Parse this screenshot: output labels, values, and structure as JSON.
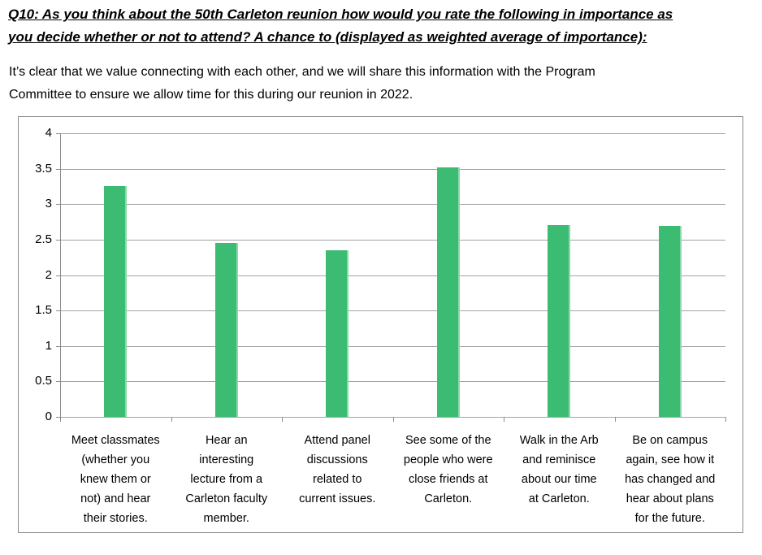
{
  "header": {
    "lines": [
      "Q10: As you think about the 50th Carleton reunion how would you rate the following in importance as",
      "you decide whether or not to attend?  A chance to (displayed as weighted average of importance):"
    ]
  },
  "intro": {
    "lines": [
      "It’s clear that we value connecting with each other, and we will share this information with the Program",
      "Committee to ensure we allow time for this during our reunion in 2022."
    ]
  },
  "chart_data": {
    "type": "bar",
    "title": "",
    "xlabel": "",
    "ylabel": "",
    "categories": [
      "Meet classmates (whether you knew them or not) and hear their stories.",
      "Hear an interesting lecture from a Carleton faculty member.",
      "Attend panel discussions related to current issues.",
      "See some of the people who were close friends at Carleton.",
      "Walk in the Arb and reminisce about our time at Carleton.",
      "Be on campus again, see how it has changed and hear about plans for the future."
    ],
    "category_lines": [
      [
        "Meet classmates",
        "(whether you",
        "knew them or",
        "not) and hear",
        "their stories."
      ],
      [
        "Hear an",
        "interesting",
        "lecture from a",
        "Carleton faculty",
        "member."
      ],
      [
        "Attend panel",
        "discussions",
        "related to",
        "current issues."
      ],
      [
        "See some of the",
        "people who were",
        "close friends at",
        "Carleton."
      ],
      [
        "Walk in the Arb",
        "and reminisce",
        "about our time",
        "at Carleton."
      ],
      [
        "Be on campus",
        "again, see how it",
        "has changed and",
        "hear about plans",
        "for the future."
      ]
    ],
    "values": [
      3.25,
      2.45,
      2.35,
      3.52,
      2.71,
      2.69
    ],
    "ylim": [
      0,
      4
    ],
    "ytick_step": 0.5,
    "grid": true,
    "legend": false,
    "colors": {
      "bar": "#3CBB72",
      "bar_edge_highlight": "#8CD8AC",
      "gridline": "#A3A3A3",
      "axis": "#8C8C8C",
      "frame": "#898989",
      "text": "#000000"
    }
  }
}
